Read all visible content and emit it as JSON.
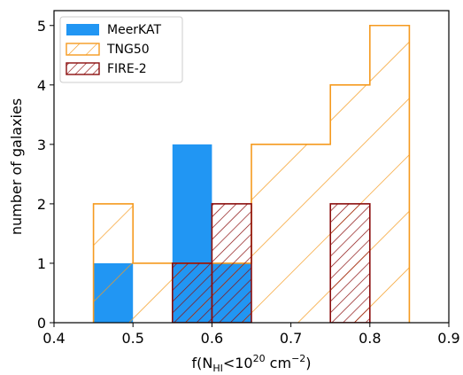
{
  "chart_data": {
    "type": "bar",
    "title": "",
    "xlabel_parts": {
      "pre": "f(N",
      "sub": "HI",
      "mid": "<10",
      "sup1": "20",
      "unit": " cm",
      "sup2": "−2",
      "post": ")"
    },
    "ylabel": "number of galaxies",
    "xlim": [
      0.4,
      0.9
    ],
    "ylim": [
      0,
      5.25
    ],
    "xticks": [
      0.4,
      0.5,
      0.6,
      0.7,
      0.8,
      0.9
    ],
    "xtick_labels": [
      "0.4",
      "0.5",
      "0.6",
      "0.7",
      "0.8",
      "0.9"
    ],
    "yticks": [
      0,
      1,
      2,
      3,
      4,
      5
    ],
    "ytick_labels": [
      "0",
      "1",
      "2",
      "3",
      "4",
      "5"
    ],
    "bin_edges": [
      0.45,
      0.5,
      0.55,
      0.6,
      0.65,
      0.7,
      0.75,
      0.8,
      0.85
    ],
    "grid": false,
    "legend_position": "upper-left",
    "series": [
      {
        "name": "MeerKAT",
        "style": "filled",
        "color": "#2196f3",
        "counts": [
          1,
          0,
          3,
          1,
          0,
          0,
          0,
          0
        ]
      },
      {
        "name": "TNG50",
        "style": "step-hatched",
        "color": "#f59a1f",
        "counts": [
          2,
          1,
          1,
          1,
          3,
          3,
          4,
          5
        ]
      },
      {
        "name": "FIRE-2",
        "style": "hatched-dense",
        "color": "#8b0d0d",
        "counts": [
          0,
          0,
          1,
          2,
          0,
          0,
          2,
          0
        ]
      }
    ]
  }
}
